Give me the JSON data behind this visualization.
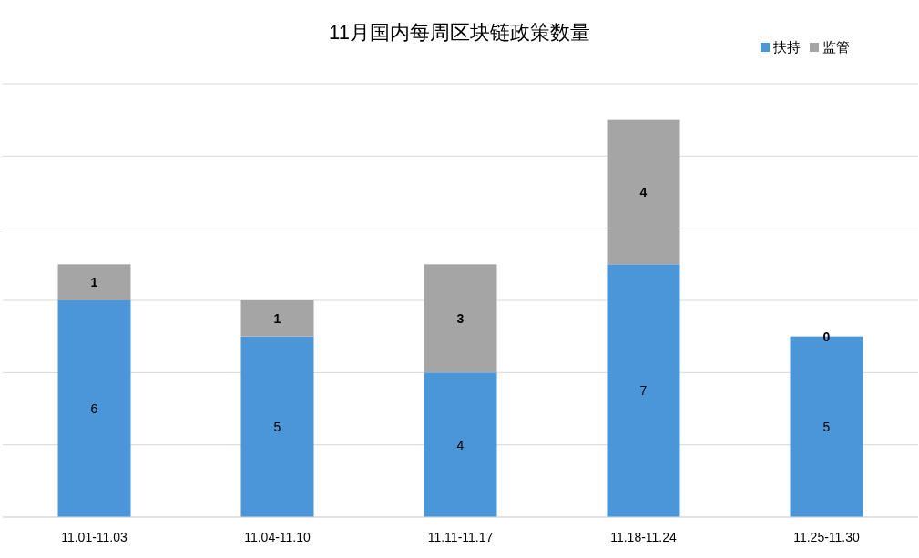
{
  "chart_data": {
    "type": "bar",
    "title": "11月国内每周区块链政策数量",
    "categories": [
      "11.01-11.03",
      "11.04-11.10",
      "11.11-11.17",
      "11.18-11.24",
      "11.25-11.30"
    ],
    "series": [
      {
        "name": "扶持",
        "color": "#4a96d9",
        "values": [
          6,
          5,
          4,
          7,
          5
        ]
      },
      {
        "name": "监管",
        "color": "#a5a5a5",
        "values": [
          1,
          1,
          3,
          4,
          0
        ]
      }
    ],
    "stacked": true,
    "ylim": [
      0,
      12
    ],
    "yticks": [
      {
        "value": 0,
        "label": null
      },
      {
        "value": 2,
        "label": null
      },
      {
        "value": 4,
        "label": null
      },
      {
        "value": 6,
        "label": null
      },
      {
        "value": 8,
        "label": null
      },
      {
        "value": 10,
        "label": null
      },
      {
        "value": 12,
        "label": null
      }
    ],
    "grid": "y",
    "legend": "top right",
    "data_labels": true
  }
}
